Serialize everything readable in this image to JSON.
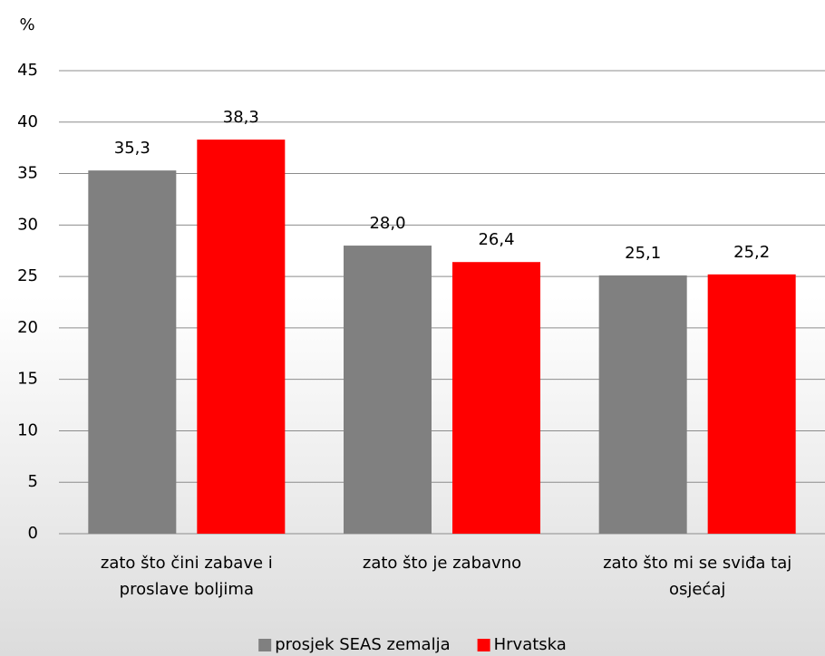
{
  "chart_data": {
    "type": "bar",
    "y_label": "%",
    "categories": [
      "zato što čini zabave i proslave boljima",
      "zato što je zabavno",
      "zato što mi se sviđa taj osjećaj"
    ],
    "series": [
      {
        "name": "prosjek SEAS zemalja",
        "color": "#808080",
        "values": [
          35.3,
          28.0,
          25.1
        ],
        "value_labels": [
          "35,3",
          "28,0",
          "25,1"
        ]
      },
      {
        "name": "Hrvatska",
        "color": "#ff0000",
        "values": [
          38.3,
          26.4,
          25.2
        ],
        "value_labels": [
          "38,3",
          "26,4",
          "25,2"
        ]
      }
    ],
    "ylim": [
      0,
      45
    ],
    "yticks": [
      0,
      5,
      10,
      15,
      20,
      25,
      30,
      35,
      40,
      45
    ],
    "grid": true,
    "legend": "bottom"
  }
}
